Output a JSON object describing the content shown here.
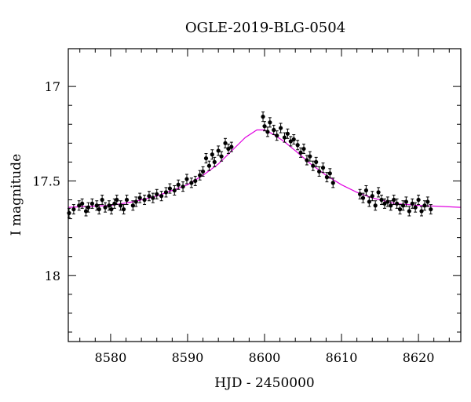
{
  "chart_data": {
    "type": "scatter",
    "title": "OGLE-2019-BLG-0504",
    "xlabel": "HJD - 2450000",
    "ylabel": "I magnitude",
    "xlim": [
      8574.5,
      8625.5
    ],
    "ylim": [
      18.35,
      16.8
    ],
    "y_inverted": true,
    "x_ticks": [
      8580,
      8590,
      8600,
      8610,
      8620
    ],
    "y_ticks": [
      17,
      17.5,
      18
    ],
    "x_tick_labels": [
      "8580",
      "8590",
      "8600",
      "8610",
      "8620"
    ],
    "y_tick_labels": [
      "17",
      "17.5",
      "18"
    ],
    "grid": false,
    "marker_color": "#000000",
    "model_color": "#e000e0",
    "series": [
      {
        "kind": "observations",
        "x": [
          8574.6,
          8575.2,
          8575.9,
          8576.3,
          8576.8,
          8577.1,
          8577.6,
          8578.2,
          8578.5,
          8578.9,
          8579.3,
          8579.8,
          8580.1,
          8580.5,
          8580.8,
          8581.3,
          8581.7,
          8582.1,
          8582.9,
          8583.3,
          8583.8,
          8584.4,
          8585.0,
          8585.5,
          8586.0,
          8586.6,
          8587.2,
          8587.7,
          8588.3,
          8588.8,
          8589.4,
          8589.9,
          8590.5,
          8591.0,
          8591.6,
          8592.0,
          8592.4,
          8592.8,
          8593.2,
          8593.5,
          8594.0,
          8594.4,
          8594.9,
          8595.3,
          8595.7,
          8599.8,
          8600.0,
          8600.4,
          8600.7,
          8601.2,
          8601.6,
          8602.1,
          8602.6,
          8603.0,
          8603.4,
          8603.8,
          8604.3,
          8604.7,
          8605.1,
          8605.5,
          8605.9,
          8606.3,
          8606.7,
          8607.1,
          8607.6,
          8608.1,
          8608.5,
          8608.9,
          8612.4,
          8612.8,
          8613.2,
          8613.6,
          8614.0,
          8614.4,
          8614.8,
          8615.2,
          8615.6,
          8616.0,
          8616.4,
          8616.8,
          8617.2,
          8617.6,
          8618.0,
          8618.4,
          8618.8,
          8619.2,
          8619.6,
          8620.0,
          8620.4,
          8620.8,
          8621.2,
          8621.6
        ],
        "y": [
          17.67,
          17.65,
          17.63,
          17.62,
          17.66,
          17.64,
          17.62,
          17.63,
          17.65,
          17.6,
          17.64,
          17.63,
          17.65,
          17.62,
          17.6,
          17.63,
          17.65,
          17.6,
          17.63,
          17.61,
          17.59,
          17.6,
          17.58,
          17.59,
          17.57,
          17.58,
          17.56,
          17.54,
          17.55,
          17.52,
          17.53,
          17.49,
          17.51,
          17.5,
          17.47,
          17.45,
          17.38,
          17.42,
          17.36,
          17.4,
          17.34,
          17.37,
          17.3,
          17.33,
          17.32,
          17.16,
          17.21,
          17.24,
          17.19,
          17.23,
          17.26,
          17.22,
          17.27,
          17.25,
          17.29,
          17.28,
          17.31,
          17.35,
          17.33,
          17.39,
          17.37,
          17.42,
          17.4,
          17.45,
          17.43,
          17.48,
          17.46,
          17.51,
          17.57,
          17.59,
          17.55,
          17.61,
          17.58,
          17.63,
          17.56,
          17.6,
          17.62,
          17.61,
          17.63,
          17.6,
          17.62,
          17.65,
          17.63,
          17.61,
          17.66,
          17.62,
          17.64,
          17.6,
          17.66,
          17.63,
          17.61,
          17.65
        ],
        "err": [
          0.025,
          0.025,
          0.025,
          0.025,
          0.025,
          0.025,
          0.025,
          0.025,
          0.025,
          0.025,
          0.025,
          0.025,
          0.025,
          0.025,
          0.025,
          0.025,
          0.025,
          0.025,
          0.025,
          0.025,
          0.025,
          0.025,
          0.025,
          0.025,
          0.025,
          0.025,
          0.025,
          0.025,
          0.025,
          0.025,
          0.025,
          0.025,
          0.025,
          0.025,
          0.025,
          0.025,
          0.025,
          0.025,
          0.025,
          0.025,
          0.025,
          0.025,
          0.025,
          0.025,
          0.025,
          0.025,
          0.025,
          0.025,
          0.025,
          0.025,
          0.025,
          0.025,
          0.025,
          0.025,
          0.025,
          0.025,
          0.025,
          0.025,
          0.025,
          0.025,
          0.025,
          0.025,
          0.025,
          0.025,
          0.025,
          0.025,
          0.025,
          0.025,
          0.025,
          0.025,
          0.025,
          0.025,
          0.025,
          0.025,
          0.025,
          0.025,
          0.025,
          0.025,
          0.025,
          0.025,
          0.025,
          0.025,
          0.025,
          0.025,
          0.025,
          0.025,
          0.025,
          0.025,
          0.025,
          0.025,
          0.025,
          0.025
        ]
      },
      {
        "kind": "model",
        "x": [
          8574.5,
          8577,
          8580,
          8583,
          8586,
          8588,
          8590,
          8592,
          8594,
          8596,
          8597.5,
          8599,
          8600,
          8601,
          8602.5,
          8604,
          8606,
          8608,
          8610,
          8612,
          8614,
          8617,
          8620,
          8623,
          8625.5
        ],
        "y": [
          17.64,
          17.635,
          17.63,
          17.61,
          17.58,
          17.55,
          17.52,
          17.47,
          17.41,
          17.33,
          17.27,
          17.23,
          17.23,
          17.25,
          17.29,
          17.34,
          17.41,
          17.47,
          17.52,
          17.56,
          17.59,
          17.62,
          17.63,
          17.635,
          17.64
        ]
      }
    ]
  }
}
